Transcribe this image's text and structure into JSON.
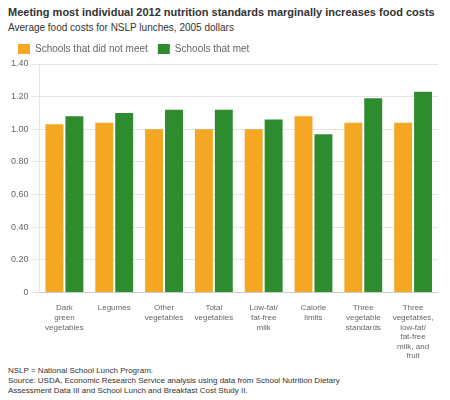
{
  "chart_data": {
    "type": "bar",
    "title": "Meeting most individual 2012 nutrition standards marginally increases food costs",
    "subtitle": "Average food costs for NSLP lunches, 2005 dollars",
    "categories": [
      "Dark\ngreen\nvegetables",
      "Legumes",
      "Other\nvegetables",
      "Total\nvegetables",
      "Low-fat/\nfat-free\nmilk",
      "Calorie\nlimits",
      "Three\nvegetable\nstandards",
      "Three\nvegetables,\nlow-fat/\nfat-free\nmilk, and\nfruit"
    ],
    "series": [
      {
        "name": "Schools that did not meet",
        "color": "#F5A623",
        "values": [
          1.03,
          1.04,
          1.0,
          1.0,
          1.0,
          1.08,
          1.04,
          1.04
        ]
      },
      {
        "name": "Schools that met",
        "color": "#2E8B2E",
        "values": [
          1.08,
          1.1,
          1.12,
          1.12,
          1.06,
          0.97,
          1.19,
          1.23
        ]
      }
    ],
    "ylim": [
      0,
      1.4
    ],
    "yticks": [
      0,
      {
        "value": 0.2,
        "label": "0.20"
      },
      {
        "value": 0.4,
        "label": "0.40"
      },
      {
        "value": 0.6,
        "label": "0.60"
      },
      {
        "value": 0.8,
        "label": "0.80"
      },
      {
        "value": 1.0,
        "label": "1.00"
      },
      {
        "value": 1.2,
        "label": "1.20"
      },
      {
        "value": 1.4,
        "label": "1.40"
      }
    ],
    "grid": true,
    "legend": "upper left",
    "annotations": [
      "NSLP = National School Lunch Program.",
      "Source: USDA, Economic Research Service analysis using data from School Nutrition Dietary\nAssessment Data III and School Lunch and Breakfast Cost Study II."
    ]
  }
}
